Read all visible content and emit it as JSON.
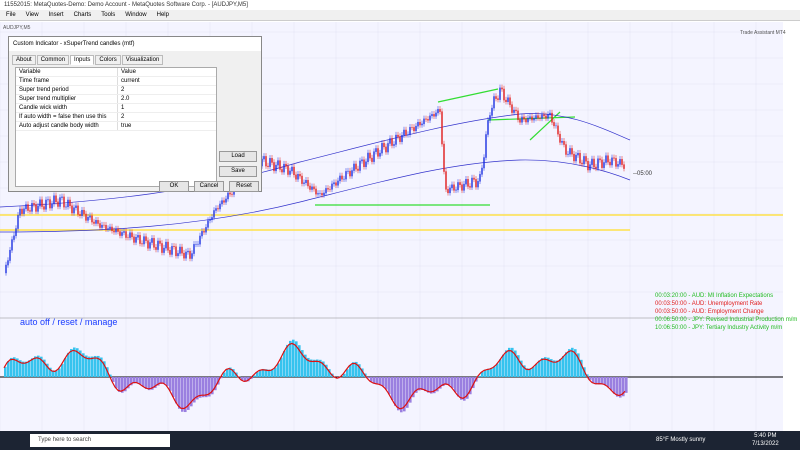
{
  "window": {
    "title": "11552015: MetaQuotes-Demo: Demo Account - MetaQuotes Software Corp. - [AUDJPY,M5]",
    "menu": [
      "File",
      "View",
      "Insert",
      "Charts",
      "Tools",
      "Window",
      "Help"
    ]
  },
  "chart": {
    "symbol": "AUDJPY,M5",
    "panel_label": "Trade Assistant MT4",
    "overlay_text": "auto off / reset / manage",
    "countdown": "--05:00"
  },
  "dialog": {
    "title": "Custom Indicator - xSuperTrend candles (mtf)",
    "tabs": [
      "About",
      "Common",
      "Inputs",
      "Colors",
      "Visualization"
    ],
    "active_tab": "Inputs",
    "columns": [
      "Variable",
      "Value"
    ],
    "rows": [
      [
        "Time frame",
        "current"
      ],
      [
        "Super trend period",
        "2"
      ],
      [
        "Super trend multiplier",
        "2.0"
      ],
      [
        "Candle wick width",
        "1"
      ],
      [
        "If auto width = false then use this",
        "2"
      ],
      [
        "Auto adjust candle body width",
        "true"
      ]
    ],
    "side_buttons": [
      "Load",
      "Save"
    ],
    "buttons": [
      "OK",
      "Cancel",
      "Reset"
    ]
  },
  "news": [
    {
      "text": "00:03:20:00 - AUD: MI Inflation Expectations",
      "color": "#22bb22"
    },
    {
      "text": "00:03:50:00 - AUD: Unemployment Rate",
      "color": "#e02020"
    },
    {
      "text": "00:03:50:00 - AUD: Employment Change",
      "color": "#e02020"
    },
    {
      "text": "00:06:50:00 - JPY: Revised Industrial Production m/m",
      "color": "#22bb22"
    },
    {
      "text": "10:06:50:00 - JPY: Tertiary Industry Activity m/m",
      "color": "#22bb22"
    }
  ],
  "taskbar": {
    "search": "Type here to search",
    "weather": "85°F  Mostly sunny",
    "time": "5:40 PM",
    "date": "7/13/2022"
  }
}
